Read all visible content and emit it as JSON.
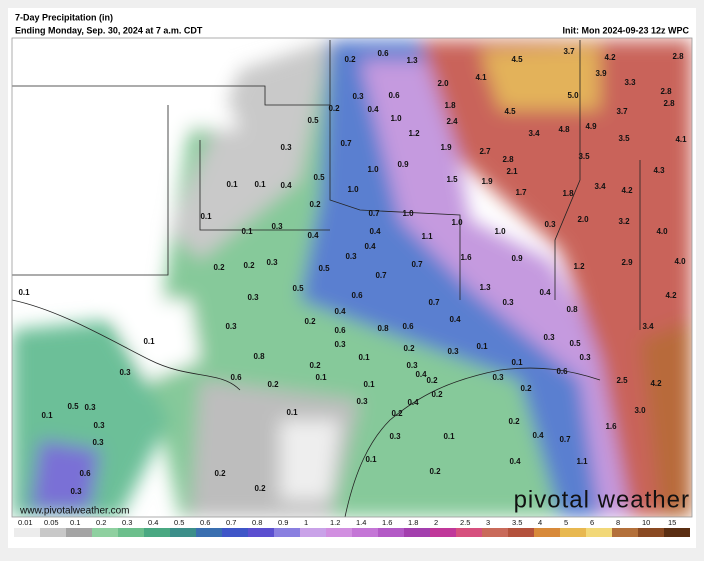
{
  "header": {
    "title": "7-Day Precipitation (in)",
    "subtitle": "Ending Monday, Sep. 30, 2024 at 7 a.m. CDT",
    "init": "Init: Mon 2024-09-23 12z WPC"
  },
  "map_labels": [
    "0.2",
    "0.6",
    "1.3",
    "3.7",
    "4.2",
    "2.8",
    "4.5",
    "3.9",
    "4.1",
    "3.3",
    "2.0",
    "2.8",
    "0.3",
    "0.6",
    "5.0",
    "0.2",
    "0.4",
    "1.8",
    "4.5",
    "3.7",
    "2.8",
    "0.5",
    "1.0",
    "2.4",
    "3.4",
    "4.8",
    "4.9",
    "4.1",
    "1.2",
    "3.5",
    "0.3",
    "0.7",
    "1.9",
    "2.7",
    "3.5",
    "2.8",
    "0.9",
    "1.0",
    "2.1",
    "4.3",
    "0.5",
    "0.1",
    "0.1",
    "0.4",
    "1.5",
    "1.9",
    "3.4",
    "4.2",
    "1.0",
    "1.8",
    "1.7",
    "0.2",
    "0.7",
    "1.0",
    "0.1",
    "2.0",
    "3.2",
    "0.3",
    "1.0",
    "0.4",
    "1.0",
    "0.3",
    "4.0",
    "0.1",
    "0.4",
    "1.1",
    "0.4",
    "0.3",
    "1.6",
    "0.9",
    "1.2",
    "2.9",
    "4.0",
    "0.2",
    "0.2",
    "0.3",
    "0.5",
    "0.7",
    "0.7",
    "1.3",
    "0.4",
    "4.2",
    "0.1",
    "0.5",
    "0.6",
    "0.3",
    "0.7",
    "0.3",
    "0.8",
    "0.4",
    "0.3",
    "0.2",
    "0.4",
    "0.6",
    "0.8",
    "0.6",
    "3.4",
    "0.1",
    "0.3",
    "0.3",
    "0.5",
    "0.8",
    "0.2",
    "0.3",
    "0.1",
    "0.1",
    "0.3",
    "0.4",
    "0.3",
    "0.2",
    "0.1",
    "0.3",
    "0.6",
    "0.2",
    "0.1",
    "0.2",
    "0.3",
    "0.6",
    "2.5",
    "4.2",
    "0.2",
    "0.1",
    "0.5",
    "0.3",
    "0.3",
    "0.4",
    "0.2",
    "0.1",
    "0.2",
    "0.1",
    "0.3",
    "0.2",
    "3.0",
    "1.6",
    "0.4",
    "0.7",
    "0.3",
    "0.1",
    "0.3",
    "0.1",
    "0.4",
    "1.1",
    "0.6",
    "0.2",
    "0.2",
    "0.2",
    "0.3"
  ],
  "colorbar_labels": [
    "0.01",
    "0.05",
    "0.1",
    "0.2",
    "0.3",
    "0.4",
    "0.5",
    "0.6",
    "0.7",
    "0.8",
    "0.9",
    "1",
    "1.2",
    "1.4",
    "1.6",
    "1.8",
    "2",
    "2.5",
    "3",
    "3.5",
    "4",
    "5",
    "6",
    "8",
    "10",
    "15"
  ],
  "watermark": {
    "url": "www.pivotalweather.com",
    "brand": "pivotal weather"
  }
}
